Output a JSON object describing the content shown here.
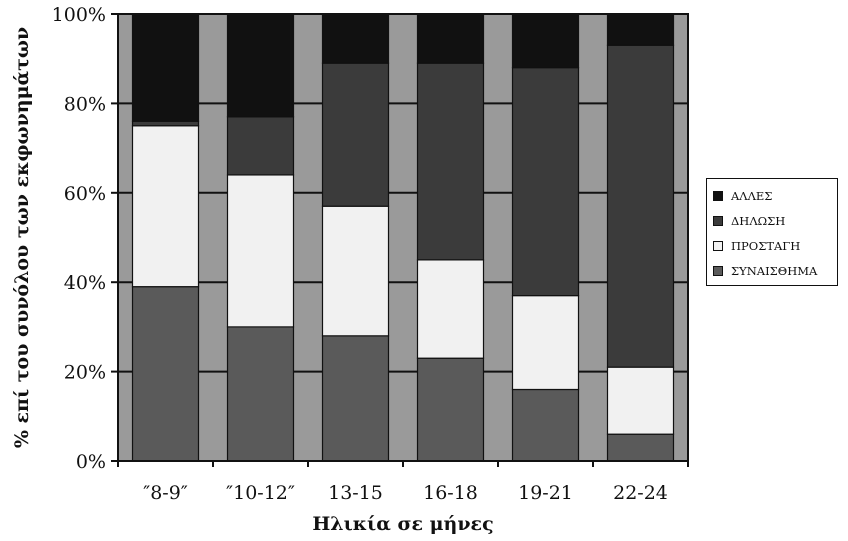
{
  "chart_data": {
    "type": "bar",
    "stacked": true,
    "percent": true,
    "title": "",
    "xlabel": "Ηλικία σε μήνες",
    "ylabel": "% επί του συνόλου των εκφωνημάτων",
    "categories": [
      "″8-9″",
      "″10-12″",
      "13-15",
      "16-18",
      "19-21",
      "22-24"
    ],
    "ylim": [
      0,
      100
    ],
    "yticks": [
      "0%",
      "20%",
      "40%",
      "60%",
      "80%",
      "100%"
    ],
    "legend_position": "right",
    "series": [
      {
        "name": "ΣΥΝΑΙΣΘΗΜΑ",
        "color": "#5a5a5a",
        "values": [
          39,
          30,
          28,
          23,
          16,
          6
        ]
      },
      {
        "name": "ΠΡΟΣΤΑΓΗ",
        "color": "#f1f1f1",
        "values": [
          36,
          34,
          29,
          22,
          21,
          15
        ]
      },
      {
        "name": "ΔΗΛΩΣΗ",
        "color": "#3b3b3b",
        "values": [
          1,
          13,
          32,
          44,
          51,
          72
        ]
      },
      {
        "name": "ΑΛΛΕΣ",
        "color": "#111111",
        "values": [
          24,
          23,
          11,
          11,
          12,
          7
        ]
      }
    ],
    "legend_order": [
      "ΑΛΛΕΣ",
      "ΔΗΛΩΣΗ",
      "ΠΡΟΣΤΑΓΗ",
      "ΣΥΝΑΙΣΘΗΜΑ"
    ],
    "plot_background": "#9a9a9a"
  }
}
